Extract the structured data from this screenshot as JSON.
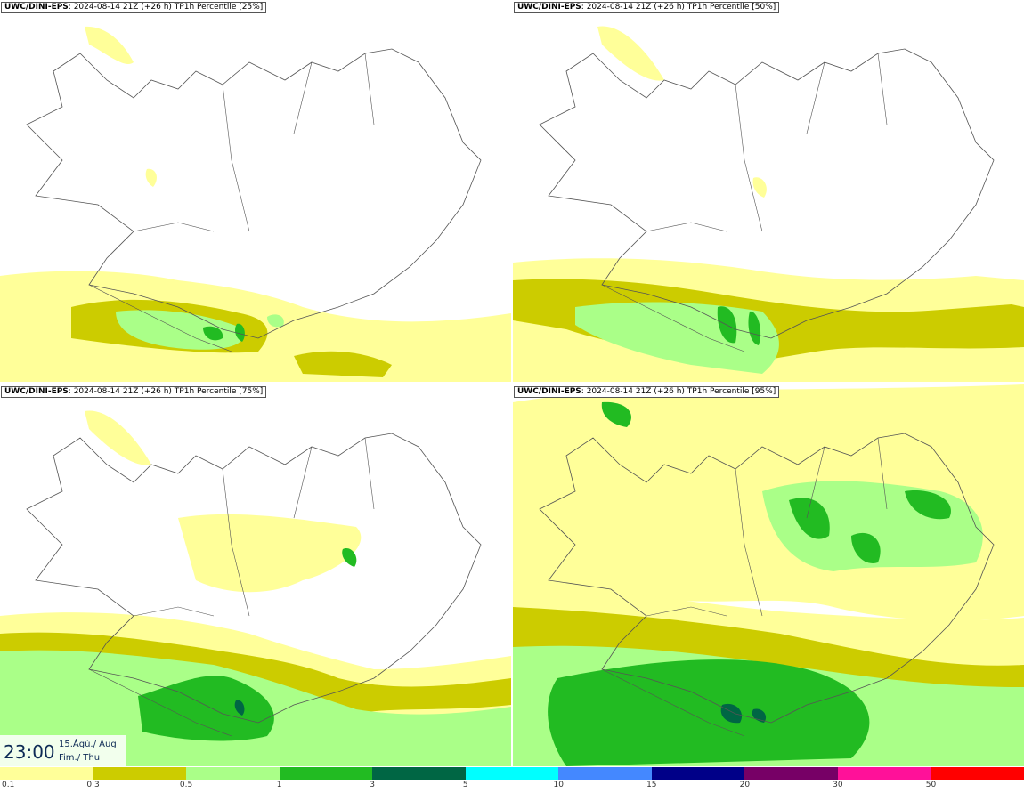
{
  "panels": [
    {
      "model": "UWC/DINI-EPS",
      "run": ": 2024-08-14 21Z (+26 h)",
      "field": "TP1h Percentile [25%]"
    },
    {
      "model": "UWC/DINI-EPS",
      "run": ": 2024-08-14 21Z (+26 h)",
      "field": "TP1h Percentile [50%]"
    },
    {
      "model": "UWC/DINI-EPS",
      "run": ": 2024-08-14 21Z (+26 h)",
      "field": "TP1h Percentile [75%]"
    },
    {
      "model": "UWC/DINI-EPS",
      "run": ": 2024-08-14 21Z (+26 h)",
      "field": "TP1h Percentile [95%]"
    }
  ],
  "valid_time": {
    "time": "23:00",
    "date_line1": "15.Ágú./ Aug",
    "date_line2": "Fim./ Thu"
  },
  "colorbar": {
    "colors": [
      "#ffff99",
      "#cccc00",
      "#aaff88",
      "#22bb22",
      "#006644",
      "#00ffff",
      "#4488ff",
      "#000088",
      "#770066",
      "#ff1199",
      "#ff0000"
    ],
    "labels": [
      "0.1",
      "0.3",
      "0.5",
      "1",
      "3",
      "5",
      "10",
      "15",
      "20",
      "30",
      "50"
    ]
  }
}
